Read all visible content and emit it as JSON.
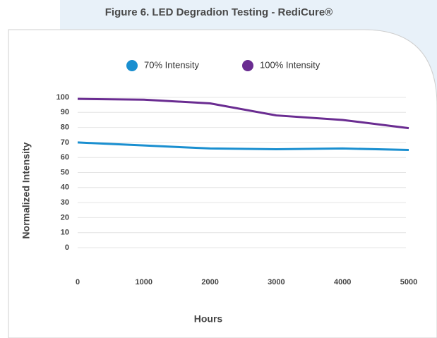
{
  "chart_data": {
    "type": "line",
    "title": "Figure 6. LED Degradion Testing - RediCure®",
    "x_label": "Hours",
    "y_label": "Normalized Intensity",
    "x": [
      0,
      1000,
      2000,
      3000,
      4000,
      5000
    ],
    "series": [
      {
        "name": "70% Intensity",
        "color": "#1a8fd0",
        "values": [
          70,
          68,
          66,
          65.5,
          66,
          65
        ]
      },
      {
        "name": "100% Intensity",
        "color": "#6a2c91",
        "values": [
          99,
          98.5,
          96,
          88,
          85,
          79.5
        ]
      }
    ],
    "xlim": [
      0,
      5000
    ],
    "xticks": [
      0,
      1000,
      2000,
      3000,
      4000,
      5000
    ],
    "ylim": [
      0,
      100
    ],
    "yticks": [
      0,
      10,
      20,
      30,
      40,
      50,
      60,
      70,
      80,
      90,
      100
    ],
    "grid": true,
    "legend": "top"
  }
}
